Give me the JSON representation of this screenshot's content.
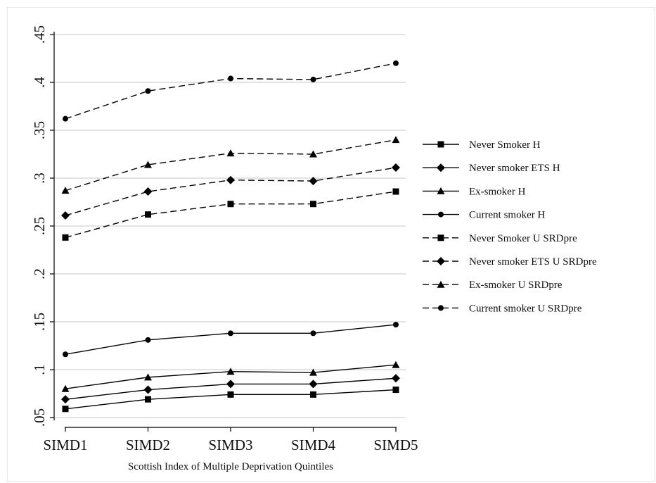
{
  "chart_data": {
    "type": "line",
    "title": "",
    "xlabel": "Scottish Index of Multiple Deprivation Quintiles",
    "ylabel": "",
    "categories": [
      "SIMD1",
      "SIMD2",
      "SIMD3",
      "SIMD4",
      "SIMD5"
    ],
    "ylim": [
      0.05,
      0.45
    ],
    "yticks": [
      ".05",
      ".1",
      ".15",
      ".2",
      ".25",
      ".3",
      ".35",
      ".4",
      ".45"
    ],
    "ytick_values": [
      0.05,
      0.1,
      0.15,
      0.2,
      0.25,
      0.3,
      0.35,
      0.4,
      0.45
    ],
    "grid": "horizontal",
    "legend_position": "right",
    "series": [
      {
        "name": "Never Smoker H",
        "marker": "square",
        "dash": "solid",
        "values": [
          0.059,
          0.069,
          0.074,
          0.074,
          0.079
        ]
      },
      {
        "name": "Never smoker ETS H",
        "marker": "diamond",
        "dash": "solid",
        "values": [
          0.069,
          0.079,
          0.085,
          0.085,
          0.091
        ]
      },
      {
        "name": "Ex-smoker H",
        "marker": "triangle",
        "dash": "solid",
        "values": [
          0.08,
          0.092,
          0.098,
          0.097,
          0.105
        ]
      },
      {
        "name": "Current smoker H",
        "marker": "circle",
        "dash": "solid",
        "values": [
          0.116,
          0.131,
          0.138,
          0.138,
          0.147
        ]
      },
      {
        "name": "Never Smoker U SRDpre",
        "marker": "square",
        "dash": "dashed",
        "values": [
          0.238,
          0.262,
          0.273,
          0.273,
          0.286
        ]
      },
      {
        "name": "Never smoker ETS U SRDpre",
        "marker": "diamond",
        "dash": "dashed",
        "values": [
          0.261,
          0.286,
          0.298,
          0.297,
          0.311
        ]
      },
      {
        "name": "Ex-smoker U SRDpre",
        "marker": "triangle",
        "dash": "dashed",
        "values": [
          0.287,
          0.314,
          0.326,
          0.325,
          0.34
        ]
      },
      {
        "name": "Current smoker U SRDpre",
        "marker": "circle",
        "dash": "dashed",
        "values": [
          0.362,
          0.391,
          0.404,
          0.403,
          0.42
        ]
      }
    ]
  }
}
